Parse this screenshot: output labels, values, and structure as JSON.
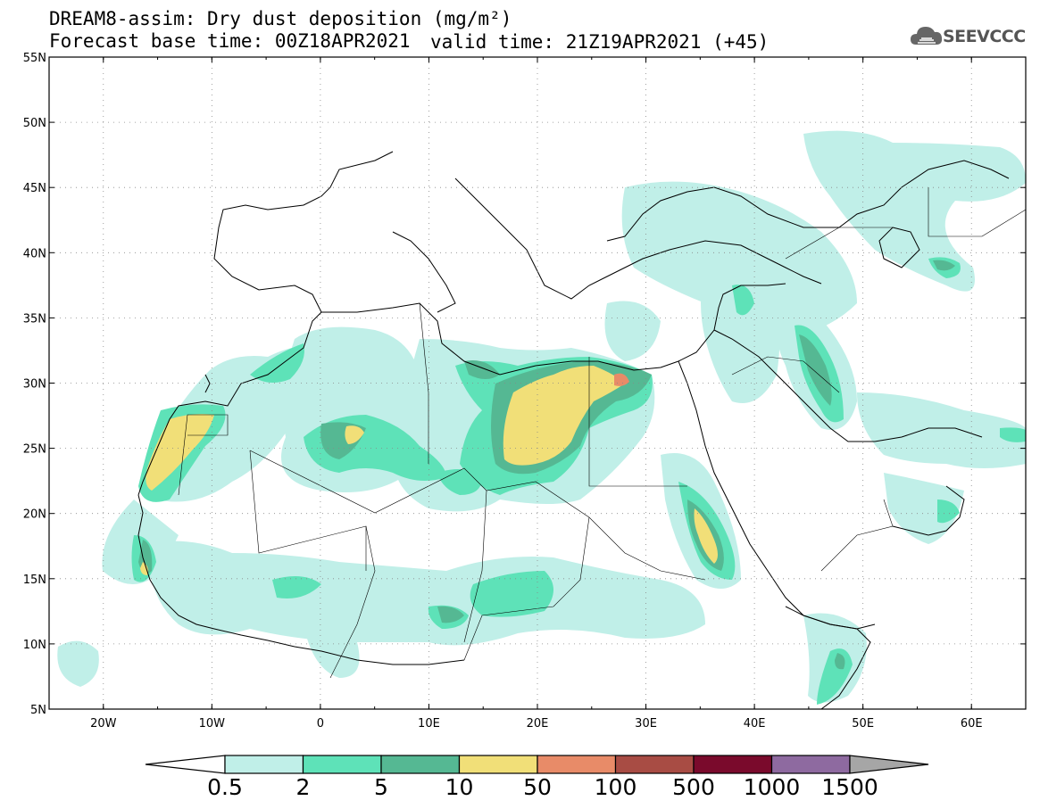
{
  "header": {
    "title_line1": "DREAM8-assim: Dry dust deposition (mg/m²)",
    "title_line2": "Forecast base time: 00Z18APR2021",
    "valid_time": "valid time: 21Z19APR2021 (+45)"
  },
  "logo": {
    "text": "SEEVCCC",
    "icon": "cloud-icon"
  },
  "map": {
    "lon_range": [
      -25,
      65
    ],
    "lat_range": [
      5,
      55
    ],
    "lat_ticks": [
      "5N",
      "10N",
      "15N",
      "20N",
      "25N",
      "30N",
      "35N",
      "40N",
      "45N",
      "50N",
      "55N"
    ],
    "lon_ticks": [
      "20W",
      "10W",
      "0",
      "10E",
      "20E",
      "30E",
      "40E",
      "50E",
      "60E"
    ],
    "grid": "dotted"
  },
  "colorbar": {
    "labels": [
      "0.5",
      "2",
      "5",
      "10",
      "50",
      "100",
      "500",
      "1000",
      "1500"
    ],
    "colors": [
      "#c0efe8",
      "#5ee2b8",
      "#55b893",
      "#f1df78",
      "#e88b68",
      "#a84c44",
      "#7a0a2c",
      "#8e6aa0"
    ],
    "under_color": "#ffffff",
    "over_color": "#a6a6a6"
  },
  "legend_levels": {
    "level1": "#c0efe8",
    "level2": "#5ee2b8",
    "level3": "#55b893",
    "level4": "#f1df78",
    "level5": "#e88b68"
  }
}
